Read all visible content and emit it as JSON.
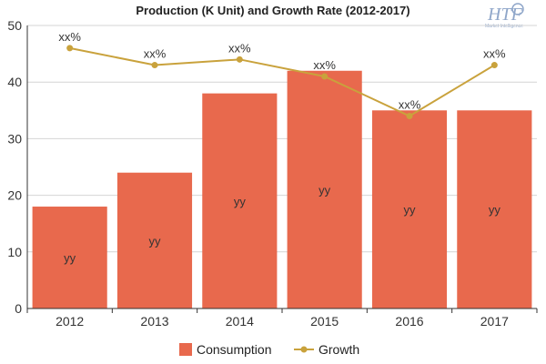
{
  "colors": {
    "bar": "#E8694D",
    "line": "#C9A23C",
    "grid": "#D4D4D4",
    "axis": "#333333",
    "logo": "#8FA6C9"
  },
  "logo": {
    "mark": "HTF",
    "tagline": "Market Intelligence"
  },
  "chart_data": {
    "type": "bar",
    "title": "Production (K Unit) and Growth Rate (2012-2017)",
    "categories": [
      "2012",
      "2013",
      "2014",
      "2015",
      "2016",
      "2017"
    ],
    "ylim": [
      0,
      50
    ],
    "yticks": [
      0,
      10,
      20,
      30,
      40,
      50
    ],
    "grid": true,
    "legend_position": "bottom",
    "series": [
      {
        "name": "Consumption",
        "type": "bar",
        "values": [
          18,
          24,
          38,
          42,
          35,
          35
        ],
        "labels": [
          "yy",
          "yy",
          "yy",
          "yy",
          "yy",
          "yy"
        ]
      },
      {
        "name": "Growth",
        "type": "line",
        "values": [
          46,
          43,
          44,
          41,
          34,
          43
        ],
        "labels": [
          "xx%",
          "xx%",
          "xx%",
          "xx%",
          "xx%",
          "xx%"
        ]
      }
    ]
  }
}
